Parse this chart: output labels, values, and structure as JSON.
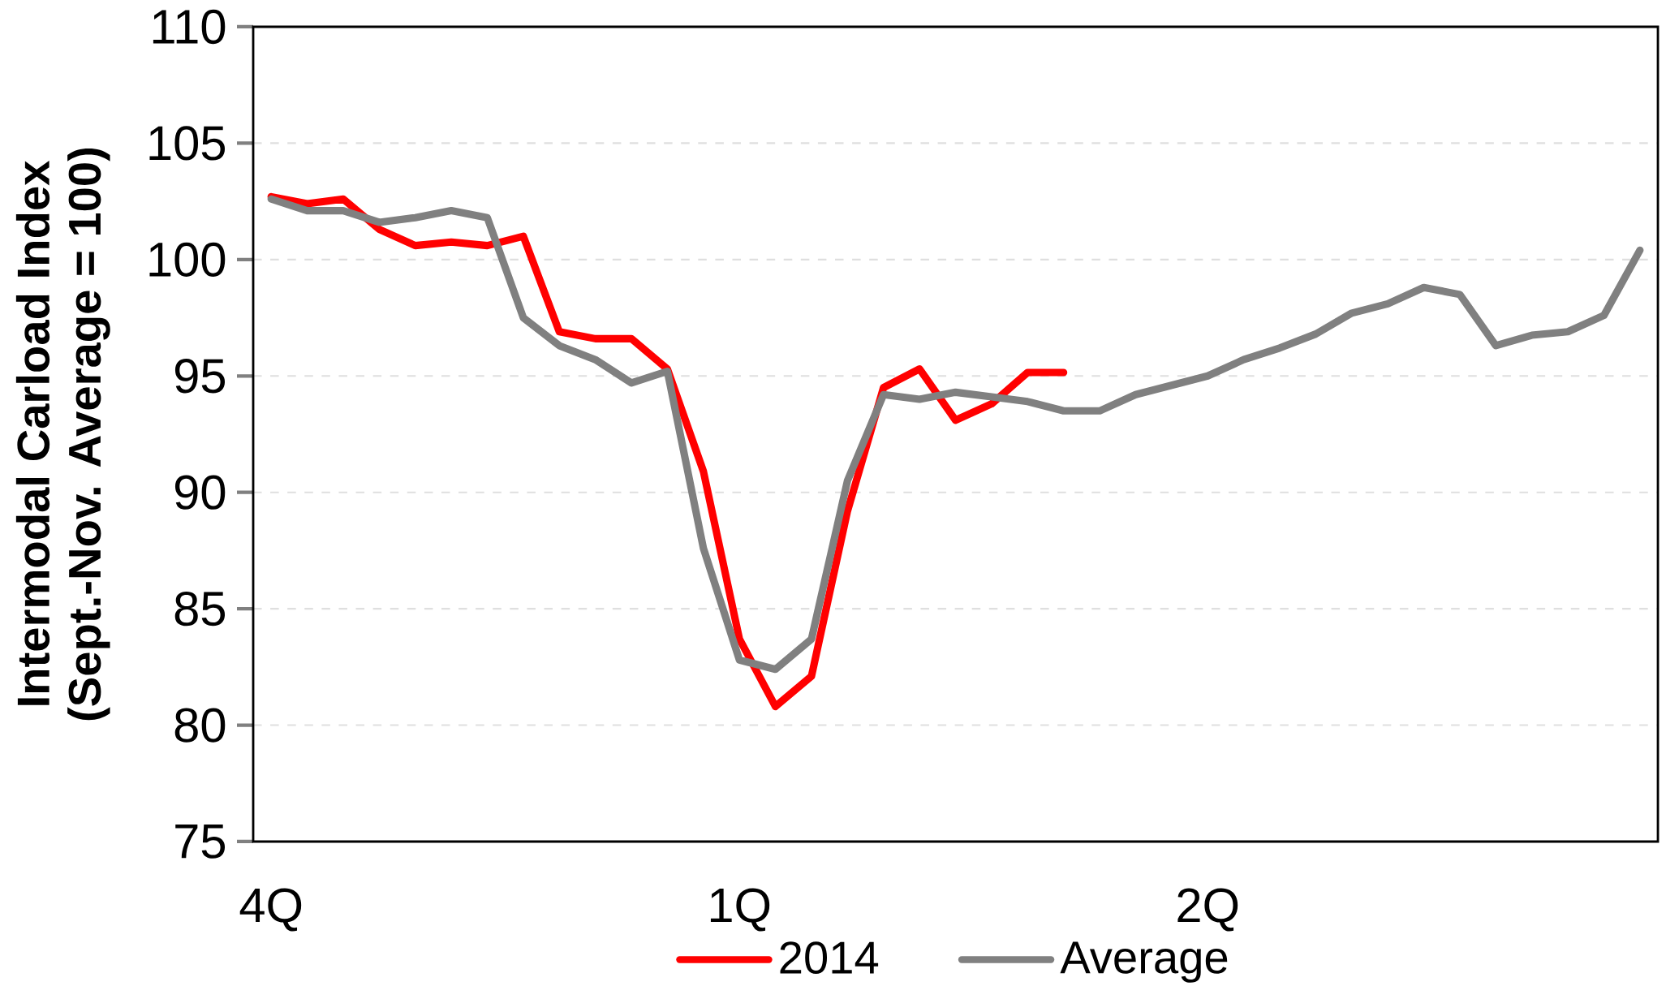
{
  "chart_data": {
    "type": "line",
    "ylabel": "Intermodal Carload Index\n(Sept.-Nov. Average = 100)",
    "categories": [
      "4Q",
      null,
      null,
      null,
      null,
      null,
      null,
      null,
      null,
      null,
      null,
      null,
      null,
      "1Q",
      null,
      null,
      null,
      null,
      null,
      null,
      null,
      null,
      null,
      null,
      null,
      null,
      "2Q",
      null,
      null,
      null,
      null,
      null,
      null,
      null,
      null,
      null,
      null,
      null,
      null
    ],
    "series": [
      {
        "name": "2014",
        "color": "#ff0000",
        "values": [
          102.7,
          102.4,
          102.6,
          101.3,
          100.6,
          100.75,
          100.6,
          101.0,
          96.9,
          96.6,
          96.6,
          95.3,
          90.9,
          83.7,
          80.8,
          82.1,
          89.2,
          94.5,
          95.3,
          93.1,
          93.8,
          95.15,
          95.15,
          null,
          null,
          null,
          null,
          null,
          null,
          null,
          null,
          null,
          null,
          null,
          null,
          null,
          null,
          null,
          null
        ]
      },
      {
        "name": "Average",
        "color": "#808080",
        "values": [
          102.6,
          102.1,
          102.1,
          101.6,
          101.8,
          102.1,
          101.8,
          97.5,
          96.3,
          95.7,
          94.7,
          95.2,
          87.6,
          82.8,
          82.4,
          83.7,
          90.5,
          94.2,
          94.0,
          94.3,
          94.1,
          93.9,
          93.5,
          93.5,
          94.2,
          94.6,
          95.0,
          95.7,
          96.2,
          96.8,
          97.7,
          98.1,
          98.8,
          98.5,
          96.3,
          96.75,
          96.9,
          97.6,
          100.4
        ]
      }
    ],
    "ylim": [
      75,
      110
    ],
    "yticks": [
      75,
      80,
      85,
      90,
      95,
      100,
      105,
      110
    ],
    "grid": "y",
    "legend": "bottom",
    "marker": "none",
    "line_style": "solid"
  }
}
